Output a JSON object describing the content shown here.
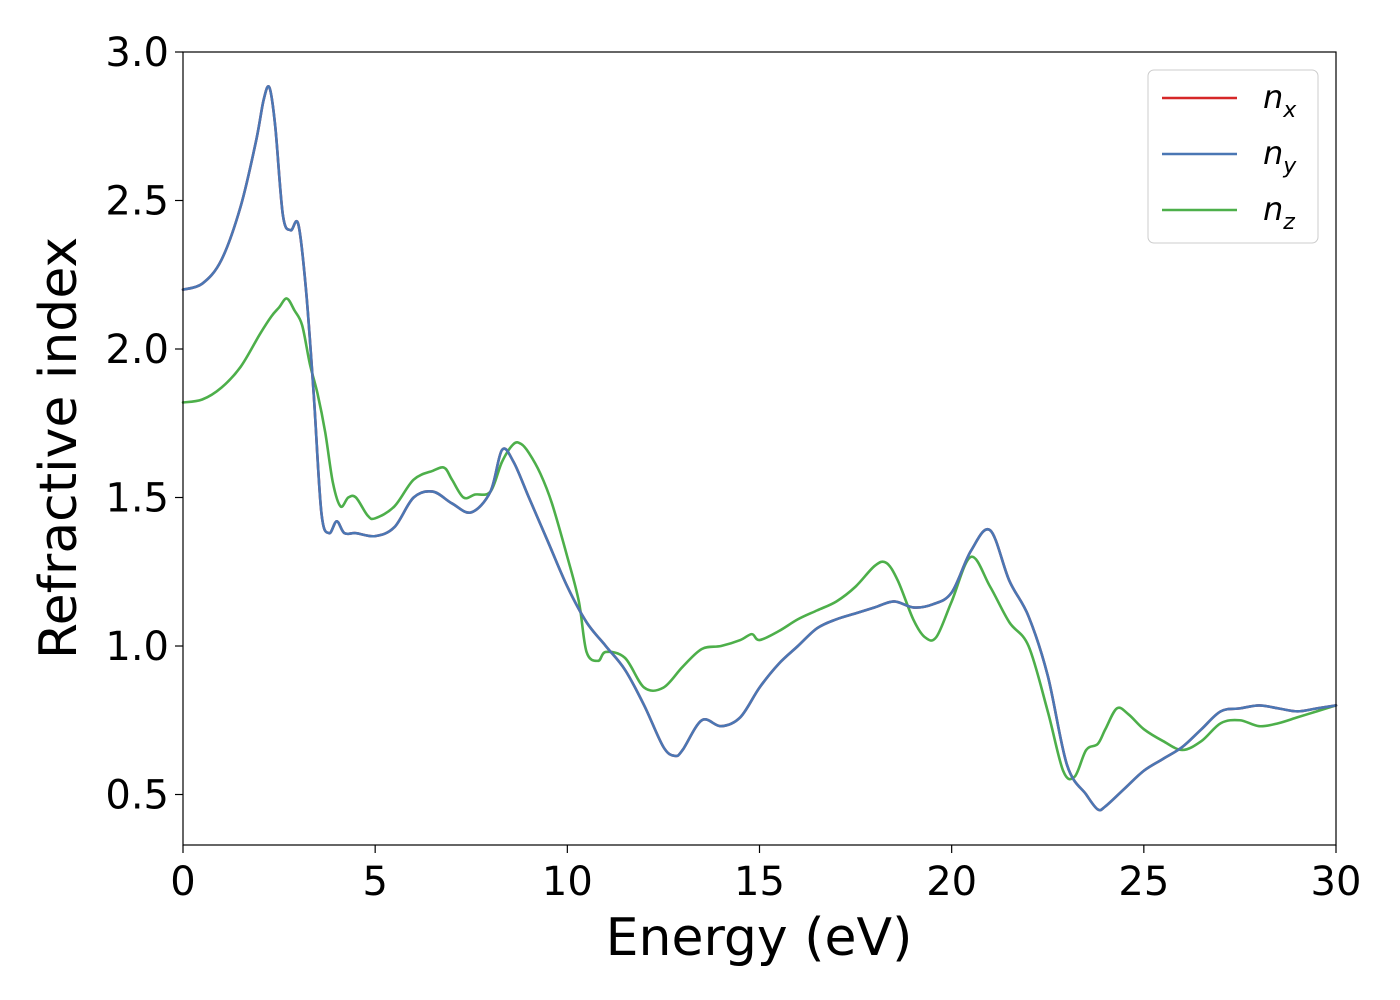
{
  "chart_data": {
    "type": "line",
    "xlabel": "Energy (eV)",
    "ylabel": "Refractive index",
    "xlim": [
      0,
      30
    ],
    "ylim": [
      0.33,
      3.0
    ],
    "xticks": [
      "0",
      "5",
      "10",
      "15",
      "20",
      "25",
      "30"
    ],
    "yticks": [
      "0.5",
      "1.0",
      "1.5",
      "2.0",
      "2.5",
      "3.0"
    ],
    "grid": false,
    "legend_position": "top-right",
    "series": [
      {
        "name": "n",
        "subscript": "x",
        "color": "#d62728",
        "x": [
          0,
          0.5,
          1.0,
          1.5,
          1.9,
          2.1,
          2.25,
          2.4,
          2.6,
          2.8,
          3.0,
          3.2,
          3.4,
          3.6,
          3.8,
          4.0,
          4.2,
          4.5,
          5.0,
          5.5,
          6.0,
          6.5,
          7.0,
          7.5,
          8.0,
          8.3,
          8.6,
          9.0,
          9.5,
          10.0,
          10.5,
          11.0,
          11.5,
          12.0,
          12.5,
          12.8,
          13.0,
          13.5,
          14.0,
          14.5,
          15.0,
          15.5,
          16.0,
          16.5,
          17.0,
          17.5,
          18.0,
          18.5,
          19.0,
          19.5,
          20.0,
          20.5,
          21.0,
          21.5,
          22.0,
          22.5,
          23.0,
          23.5,
          23.8,
          24.0,
          24.5,
          25.0,
          25.5,
          26.0,
          26.5,
          27.0,
          27.5,
          28.0,
          28.5,
          29.0,
          29.5,
          30.0
        ],
        "y": [
          2.2,
          2.22,
          2.3,
          2.48,
          2.7,
          2.84,
          2.88,
          2.75,
          2.45,
          2.4,
          2.42,
          2.2,
          1.85,
          1.45,
          1.38,
          1.42,
          1.38,
          1.38,
          1.37,
          1.4,
          1.5,
          1.52,
          1.48,
          1.45,
          1.52,
          1.66,
          1.62,
          1.5,
          1.35,
          1.2,
          1.08,
          1.0,
          0.92,
          0.8,
          0.66,
          0.63,
          0.65,
          0.75,
          0.73,
          0.76,
          0.86,
          0.94,
          1.0,
          1.06,
          1.09,
          1.11,
          1.13,
          1.15,
          1.13,
          1.14,
          1.18,
          1.32,
          1.39,
          1.22,
          1.1,
          0.9,
          0.6,
          0.5,
          0.45,
          0.46,
          0.52,
          0.58,
          0.62,
          0.66,
          0.72,
          0.78,
          0.79,
          0.8,
          0.79,
          0.78,
          0.79,
          0.8
        ]
      },
      {
        "name": "n",
        "subscript": "y",
        "color": "#4a77b4",
        "x": [
          0,
          0.5,
          1.0,
          1.5,
          1.9,
          2.1,
          2.25,
          2.4,
          2.6,
          2.8,
          3.0,
          3.2,
          3.4,
          3.6,
          3.8,
          4.0,
          4.2,
          4.5,
          5.0,
          5.5,
          6.0,
          6.5,
          7.0,
          7.5,
          8.0,
          8.3,
          8.6,
          9.0,
          9.5,
          10.0,
          10.5,
          11.0,
          11.5,
          12.0,
          12.5,
          12.8,
          13.0,
          13.5,
          14.0,
          14.5,
          15.0,
          15.5,
          16.0,
          16.5,
          17.0,
          17.5,
          18.0,
          18.5,
          19.0,
          19.5,
          20.0,
          20.5,
          21.0,
          21.5,
          22.0,
          22.5,
          23.0,
          23.5,
          23.8,
          24.0,
          24.5,
          25.0,
          25.5,
          26.0,
          26.5,
          27.0,
          27.5,
          28.0,
          28.5,
          29.0,
          29.5,
          30.0
        ],
        "y": [
          2.2,
          2.22,
          2.3,
          2.48,
          2.7,
          2.84,
          2.88,
          2.75,
          2.45,
          2.4,
          2.42,
          2.2,
          1.85,
          1.45,
          1.38,
          1.42,
          1.38,
          1.38,
          1.37,
          1.4,
          1.5,
          1.52,
          1.48,
          1.45,
          1.52,
          1.66,
          1.62,
          1.5,
          1.35,
          1.2,
          1.08,
          1.0,
          0.92,
          0.8,
          0.66,
          0.63,
          0.65,
          0.75,
          0.73,
          0.76,
          0.86,
          0.94,
          1.0,
          1.06,
          1.09,
          1.11,
          1.13,
          1.15,
          1.13,
          1.14,
          1.18,
          1.32,
          1.39,
          1.22,
          1.1,
          0.9,
          0.6,
          0.5,
          0.45,
          0.46,
          0.52,
          0.58,
          0.62,
          0.66,
          0.72,
          0.78,
          0.79,
          0.8,
          0.79,
          0.78,
          0.79,
          0.8
        ]
      },
      {
        "name": "n",
        "subscript": "z",
        "color": "#4daf4a",
        "x": [
          0,
          0.5,
          1.0,
          1.5,
          2.0,
          2.3,
          2.5,
          2.7,
          2.9,
          3.1,
          3.3,
          3.5,
          3.7,
          3.9,
          4.1,
          4.3,
          4.5,
          4.8,
          5.0,
          5.5,
          6.0,
          6.5,
          6.8,
          7.0,
          7.3,
          7.6,
          8.0,
          8.3,
          8.6,
          8.8,
          9.0,
          9.3,
          9.6,
          10.0,
          10.3,
          10.5,
          10.8,
          11.0,
          11.5,
          12.0,
          12.5,
          13.0,
          13.5,
          14.0,
          14.5,
          14.8,
          15.0,
          15.5,
          16.0,
          16.5,
          17.0,
          17.5,
          18.0,
          18.3,
          18.6,
          19.0,
          19.3,
          19.6,
          20.0,
          20.5,
          21.0,
          21.5,
          22.0,
          22.5,
          22.9,
          23.2,
          23.5,
          23.8,
          24.0,
          24.3,
          24.6,
          25.0,
          25.5,
          26.0,
          26.5,
          27.0,
          27.5,
          28.0,
          28.5,
          29.0,
          29.5,
          30.0
        ],
        "y": [
          1.82,
          1.83,
          1.87,
          1.94,
          2.05,
          2.11,
          2.14,
          2.17,
          2.13,
          2.08,
          1.95,
          1.85,
          1.72,
          1.55,
          1.47,
          1.5,
          1.5,
          1.44,
          1.43,
          1.47,
          1.56,
          1.59,
          1.6,
          1.56,
          1.5,
          1.51,
          1.52,
          1.62,
          1.68,
          1.68,
          1.65,
          1.58,
          1.48,
          1.3,
          1.15,
          0.98,
          0.95,
          0.98,
          0.96,
          0.86,
          0.86,
          0.93,
          0.99,
          1.0,
          1.02,
          1.04,
          1.02,
          1.05,
          1.09,
          1.12,
          1.15,
          1.2,
          1.27,
          1.28,
          1.22,
          1.09,
          1.03,
          1.03,
          1.15,
          1.3,
          1.2,
          1.08,
          1.0,
          0.78,
          0.58,
          0.56,
          0.65,
          0.67,
          0.72,
          0.79,
          0.77,
          0.72,
          0.68,
          0.65,
          0.68,
          0.74,
          0.75,
          0.73,
          0.74,
          0.76,
          0.78,
          0.8
        ]
      }
    ]
  }
}
